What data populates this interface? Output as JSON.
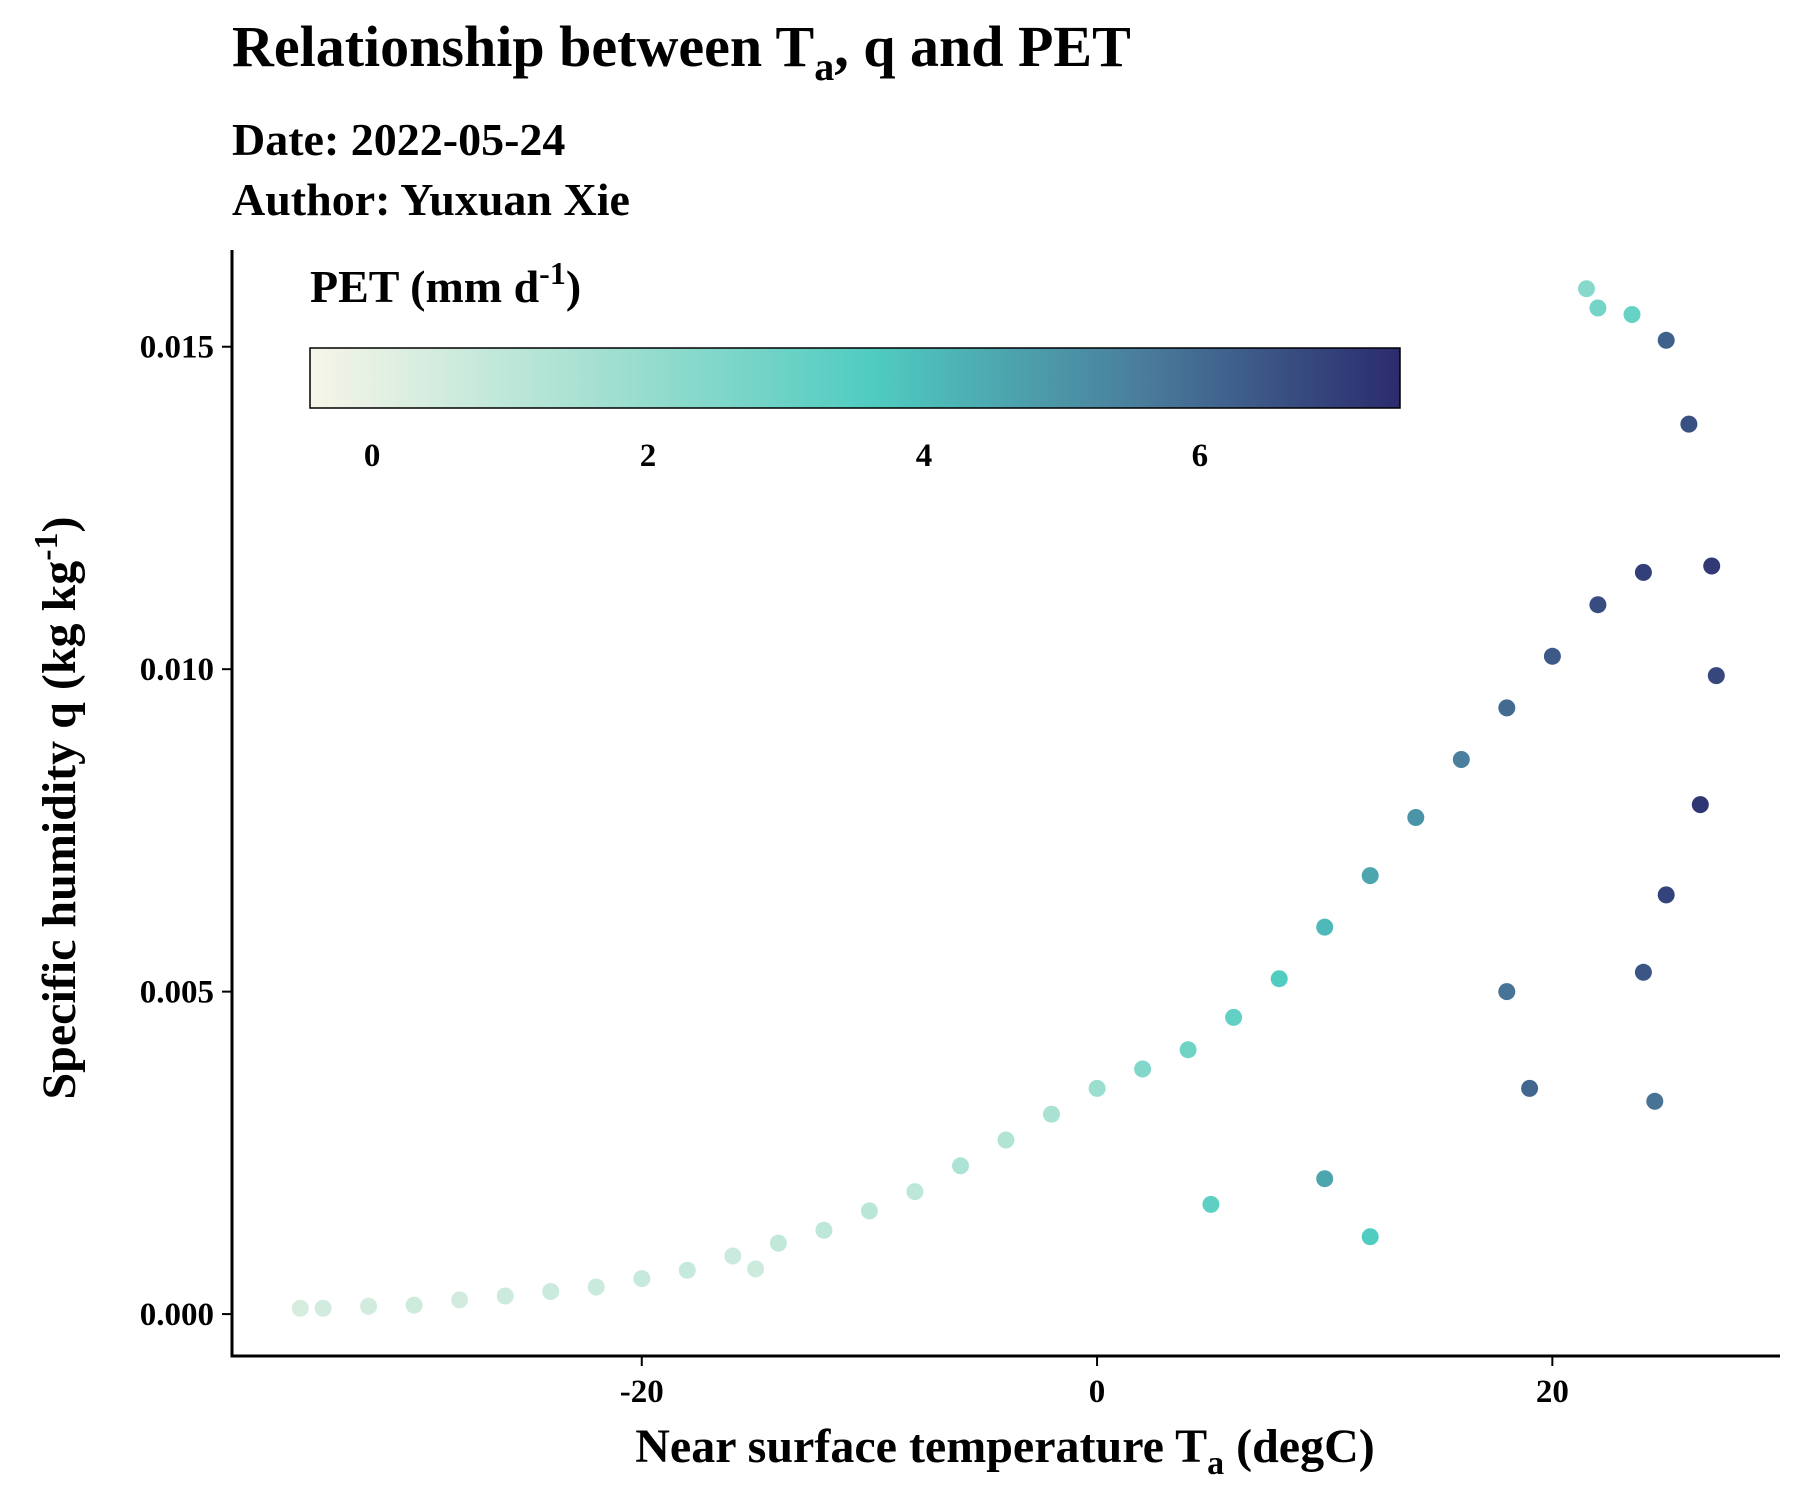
{
  "chart_data": {
    "type": "scatter",
    "title": {
      "prefix": "Relationship between T",
      "sub": "a",
      "suffix": ", q and PET"
    },
    "subtitle_lines": [
      "Date: 2022-05-24",
      "Author: Yuxuan Xie"
    ],
    "xlabel": {
      "prefix": "Near surface temperature T",
      "sub": "a",
      "suffix": " (degC)"
    },
    "ylabel": {
      "prefix": "Specific humidity q (kg kg",
      "sup": "-1",
      "suffix": ")"
    },
    "xlim": [
      -38,
      30
    ],
    "ylim": [
      -0.00065,
      0.0165
    ],
    "x_ticks": [
      -20,
      0,
      20
    ],
    "x_tick_labels": [
      "-20",
      "0",
      "20"
    ],
    "y_ticks": [
      0.0,
      0.005,
      0.01,
      0.015
    ],
    "y_tick_labels": [
      "0.000",
      "0.005",
      "0.010",
      "0.015"
    ],
    "grid": false,
    "legend": {
      "placement": "top-left",
      "title": {
        "prefix": "PET (mm d",
        "sup": "-1",
        "suffix": ")"
      },
      "range": [
        -0.45,
        7.45
      ],
      "ticks": [
        0,
        2,
        4,
        6
      ],
      "tick_labels": [
        "0",
        "2",
        "4",
        "6"
      ],
      "colors": [
        "#F7F5E8",
        "#9FDFD0",
        "#4FCBC0",
        "#4A7E9C",
        "#2B2B6E"
      ]
    },
    "series": [
      {
        "points": [
          [
            -35.0,
            9e-05,
            0.4
          ],
          [
            -34.0,
            9e-05,
            0.5
          ],
          [
            -32.0,
            0.00012,
            0.5
          ],
          [
            -30.0,
            0.00014,
            0.6
          ],
          [
            -28.0,
            0.00022,
            0.5
          ],
          [
            -26.0,
            0.00028,
            0.6
          ],
          [
            -24.0,
            0.00035,
            0.7
          ],
          [
            -22.0,
            0.00042,
            0.7
          ],
          [
            -20.0,
            0.00055,
            0.8
          ],
          [
            -18.0,
            0.00068,
            0.8
          ],
          [
            -16.0,
            0.0009,
            0.7
          ],
          [
            -15.0,
            0.0007,
            0.6
          ],
          [
            -14.0,
            0.0011,
            0.9
          ],
          [
            -12.0,
            0.0013,
            1.0
          ],
          [
            -10.0,
            0.0016,
            1.1
          ],
          [
            -8.0,
            0.0019,
            1.0
          ],
          [
            -6.0,
            0.0023,
            1.4
          ],
          [
            -4.0,
            0.0027,
            1.3
          ],
          [
            -2.0,
            0.0031,
            1.5
          ],
          [
            0.0,
            0.0035,
            1.9
          ],
          [
            2.0,
            0.0038,
            2.5
          ],
          [
            4.0,
            0.0041,
            2.9
          ],
          [
            6.0,
            0.0046,
            3.2
          ],
          [
            8.0,
            0.0052,
            3.6
          ],
          [
            10.0,
            0.006,
            4.1
          ],
          [
            12.0,
            0.0068,
            4.6
          ],
          [
            14.0,
            0.0077,
            5.0
          ],
          [
            16.0,
            0.0086,
            5.5
          ],
          [
            18.0,
            0.0094,
            6.0
          ],
          [
            20.0,
            0.0102,
            6.4
          ],
          [
            22.0,
            0.011,
            6.7
          ],
          [
            24.0,
            0.0115,
            7.0
          ],
          [
            21.5,
            0.0159,
            2.3
          ],
          [
            22.0,
            0.0156,
            2.8
          ],
          [
            23.5,
            0.0155,
            3.1
          ],
          [
            25.0,
            0.0151,
            6.2
          ],
          [
            26.0,
            0.0138,
            6.6
          ],
          [
            27.0,
            0.0116,
            7.1
          ],
          [
            27.2,
            0.0099,
            6.8
          ],
          [
            26.5,
            0.0079,
            7.2
          ],
          [
            25.0,
            0.0065,
            6.9
          ],
          [
            24.0,
            0.0053,
            6.5
          ],
          [
            24.5,
            0.0033,
            5.8
          ],
          [
            12.0,
            0.0012,
            3.6
          ],
          [
            18.0,
            0.005,
            5.8
          ],
          [
            19.0,
            0.0035,
            6.1
          ],
          [
            10.0,
            0.0021,
            4.6
          ],
          [
            5.0,
            0.0017,
            3.3
          ]
        ]
      }
    ]
  }
}
